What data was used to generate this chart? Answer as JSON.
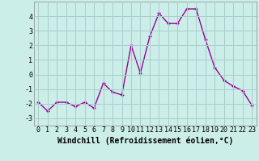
{
  "x": [
    0,
    1,
    2,
    3,
    4,
    5,
    6,
    7,
    8,
    9,
    10,
    11,
    12,
    13,
    14,
    15,
    16,
    17,
    18,
    19,
    20,
    21,
    22,
    23
  ],
  "y": [
    -1.9,
    -2.5,
    -1.9,
    -1.9,
    -2.2,
    -1.9,
    -2.3,
    -0.6,
    -1.2,
    -1.4,
    2.0,
    0.1,
    2.6,
    4.2,
    3.5,
    3.5,
    4.5,
    4.5,
    2.4,
    0.5,
    -0.4,
    -0.8,
    -1.1,
    -2.1
  ],
  "line_color": "#990099",
  "marker": "+",
  "marker_size": 3.5,
  "marker_lw": 1.0,
  "bg_color": "#cceee8",
  "grid_color": "#aacccc",
  "xlabel": "Windchill (Refroidissement éolien,°C)",
  "xlabel_fontsize": 7,
  "ylim": [
    -3.5,
    5.0
  ],
  "xlim": [
    -0.5,
    23.5
  ],
  "yticks": [
    -3,
    -2,
    -1,
    0,
    1,
    2,
    3,
    4
  ],
  "xticks": [
    0,
    1,
    2,
    3,
    4,
    5,
    6,
    7,
    8,
    9,
    10,
    11,
    12,
    13,
    14,
    15,
    16,
    17,
    18,
    19,
    20,
    21,
    22,
    23
  ],
  "tick_fontsize": 6.0,
  "line_width": 1.0
}
